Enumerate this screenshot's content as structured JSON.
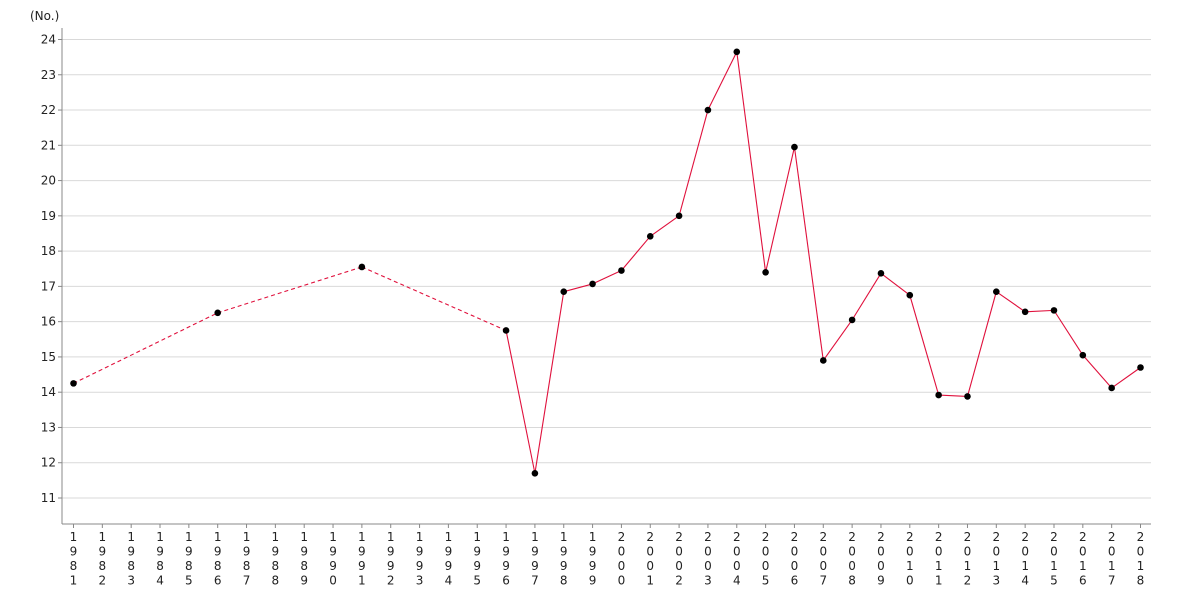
{
  "chart_data": {
    "type": "line",
    "unit_label": "(No.)",
    "ylim": [
      10,
      24.5
    ],
    "yticks": [
      11,
      12,
      13,
      14,
      15,
      16,
      17,
      18,
      19,
      20,
      21,
      22,
      23,
      24
    ],
    "grid": true,
    "categories": [
      "1981",
      "1982",
      "1983",
      "1984",
      "1985",
      "1986",
      "1987",
      "1988",
      "1989",
      "1990",
      "1991",
      "1992",
      "1993",
      "1994",
      "1995",
      "1996",
      "1997",
      "1998",
      "1999",
      "2000",
      "2001",
      "2002",
      "2003",
      "2004",
      "2005",
      "2006",
      "2007",
      "2008",
      "2009",
      "2010",
      "2011",
      "2012",
      "2013",
      "2014",
      "2015",
      "2016",
      "2017",
      "2018"
    ],
    "series": [
      {
        "color": "#e0103c",
        "marker_color": "#000000",
        "points": [
          {
            "x": "1981",
            "y": 14.25
          },
          {
            "x": "1986",
            "y": 16.25
          },
          {
            "x": "1991",
            "y": 17.55
          },
          {
            "x": "1996",
            "y": 15.75
          },
          {
            "x": "1997",
            "y": 11.7
          },
          {
            "x": "1998",
            "y": 16.85
          },
          {
            "x": "1999",
            "y": 17.07
          },
          {
            "x": "2000",
            "y": 17.45
          },
          {
            "x": "2001",
            "y": 18.42
          },
          {
            "x": "2002",
            "y": 19.0
          },
          {
            "x": "2003",
            "y": 22.0
          },
          {
            "x": "2004",
            "y": 23.65
          },
          {
            "x": "2005",
            "y": 17.4
          },
          {
            "x": "2006",
            "y": 20.95
          },
          {
            "x": "2007",
            "y": 14.9
          },
          {
            "x": "2008",
            "y": 16.05
          },
          {
            "x": "2009",
            "y": 17.37
          },
          {
            "x": "2010",
            "y": 16.75
          },
          {
            "x": "2011",
            "y": 13.92
          },
          {
            "x": "2012",
            "y": 13.88
          },
          {
            "x": "2013",
            "y": 16.85
          },
          {
            "x": "2014",
            "y": 16.28
          },
          {
            "x": "2015",
            "y": 16.32
          },
          {
            "x": "2016",
            "y": 15.05
          },
          {
            "x": "2017",
            "y": 14.12
          },
          {
            "x": "2018",
            "y": 14.7
          }
        ],
        "dashed_ranges": [
          [
            "1981",
            "1996"
          ]
        ]
      }
    ]
  }
}
